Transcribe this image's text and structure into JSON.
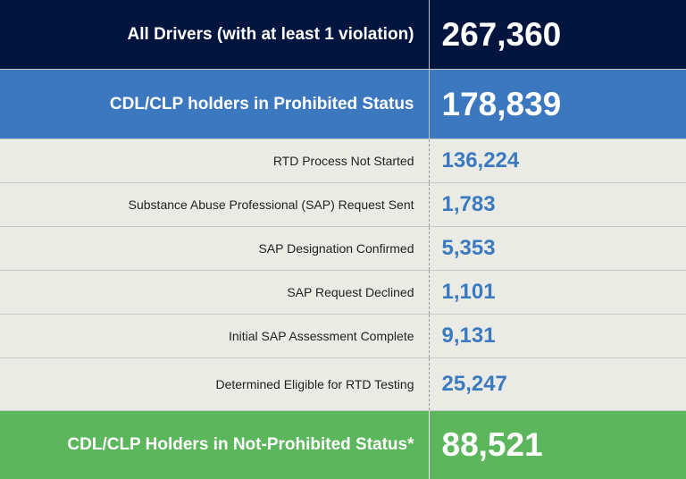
{
  "colors": {
    "navy": "#02153f",
    "blue": "#3b78c0",
    "gray": "#ebebe6",
    "green": "#5cb65c",
    "value_text": "#3c7ac0"
  },
  "rows": [
    {
      "label": "All Drivers (with at least 1 violation)",
      "value": "267,360"
    },
    {
      "label": "CDL/CLP holders in Prohibited Status",
      "value": "178,839"
    },
    {
      "label": "RTD Process Not Started",
      "value": "136,224"
    },
    {
      "label": "Substance Abuse Professional (SAP) Request Sent",
      "value": "1,783"
    },
    {
      "label": "SAP Designation Confirmed",
      "value": "5,353"
    },
    {
      "label": "SAP Request Declined",
      "value": "1,101"
    },
    {
      "label": "Initial SAP Assessment Complete",
      "value": "9,131"
    },
    {
      "label": "Determined Eligible for RTD Testing",
      "value": "25,247"
    },
    {
      "label": "CDL/CLP Holders in Not-Prohibited Status*",
      "value": "88,521"
    }
  ]
}
